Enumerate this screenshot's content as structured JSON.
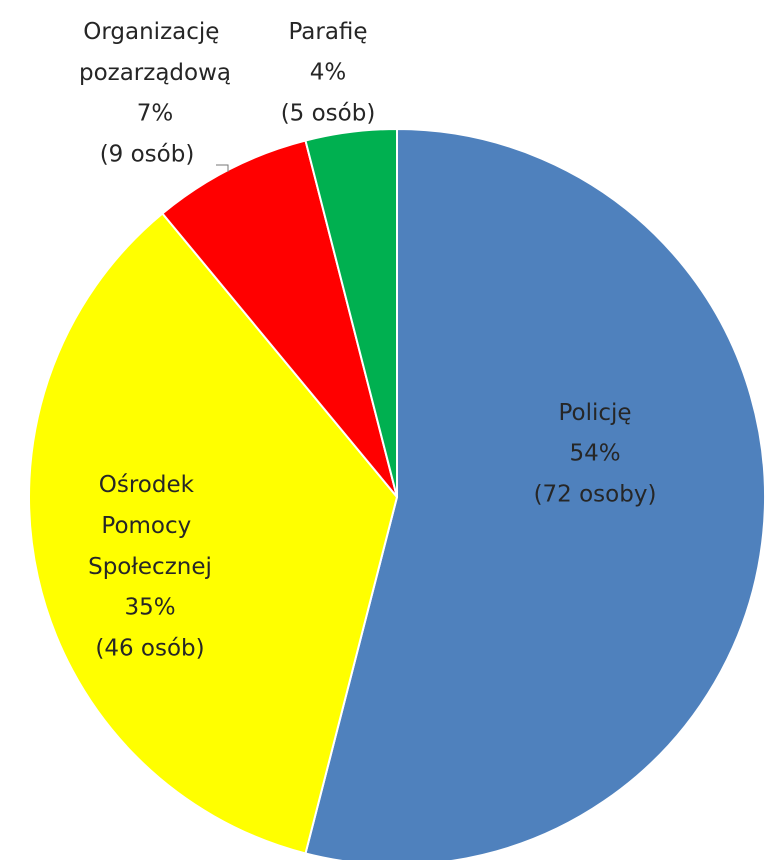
{
  "chart_data": {
    "type": "pie",
    "categories": [
      "Policję",
      "Ośrodek Pomocy Społecznej",
      "Organizację pozarządową",
      "Parafię"
    ],
    "values": [
      54,
      35,
      7,
      4
    ],
    "value_labels": [
      "54%",
      "35%",
      "7%",
      "4%"
    ],
    "count_labels": [
      "(72 osoby)",
      "(46 osób)",
      "(9 osób)",
      "(5 osób)"
    ],
    "colors": [
      "#4f81bd",
      "#ffff00",
      "#ff0000",
      "#00b050"
    ]
  }
}
